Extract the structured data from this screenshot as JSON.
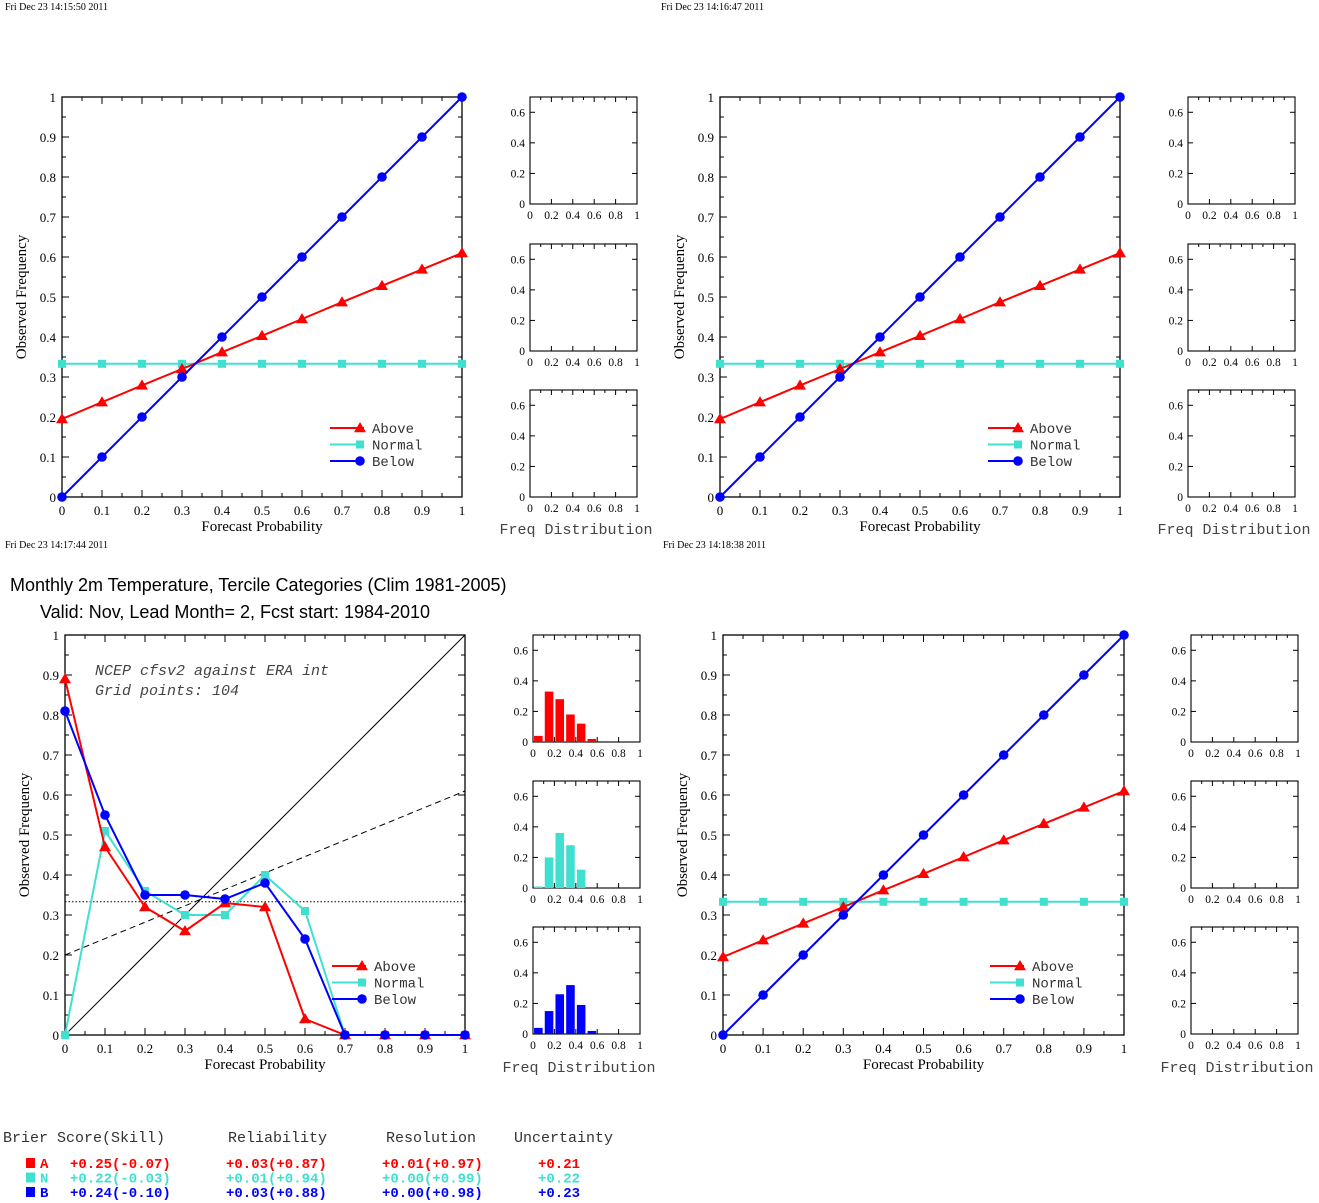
{
  "colors": {
    "above": "#ff0000",
    "normal": "#40e0d0",
    "below": "#0000ff",
    "axis": "#000000"
  },
  "timestamps": [
    "Fri Dec 23 14:15:50 2011",
    "Fri Dec 23 14:16:47 2011",
    "Fri Dec 23 14:17:44 2011",
    "Fri Dec 23 14:18:38 2011"
  ],
  "header": {
    "title": "Monthly 2m Temperature, Tercile Categories (Clim 1981-2005)",
    "subtitle": "Valid: Nov, Lead Month= 2, Fcst start: 1984-2010"
  },
  "annotation": {
    "line1": "NCEP cfsv2 against ERA int",
    "line2": "Grid points:  104"
  },
  "scores": {
    "headers": [
      "Brier Score(Skill)",
      "Reliability",
      "Resolution",
      "Uncertainty"
    ],
    "rows": [
      {
        "label": "A",
        "color": "#ff0000",
        "brier": "+0.25(-0.07)",
        "reliability": "+0.03(+0.87)",
        "resolution": "+0.01(+0.97)",
        "uncertainty": "+0.21"
      },
      {
        "label": "N",
        "color": "#40e0d0",
        "brier": "+0.22(-0.03)",
        "reliability": "+0.01(+0.94)",
        "resolution": "+0.00(+0.99)",
        "uncertainty": "+0.22"
      },
      {
        "label": "B",
        "color": "#0000ff",
        "brier": "+0.24(-0.10)",
        "reliability": "+0.03(+0.88)",
        "resolution": "+0.00(+0.98)",
        "uncertainty": "+0.23"
      }
    ]
  },
  "chart_data": [
    {
      "type": "line",
      "panel": "top-left reliability diagram",
      "xlabel": "Forecast Probability",
      "ylabel": "Observed Frequency",
      "xlim": [
        0,
        1
      ],
      "ylim": [
        0,
        1
      ],
      "x_ticks": [
        "0",
        "0.1",
        "0.2",
        "0.3",
        "0.4",
        "0.5",
        "0.6",
        "0.7",
        "0.8",
        "0.9",
        "1"
      ],
      "y_ticks": [
        "0",
        "0.1",
        "0.2",
        "0.3",
        "0.4",
        "0.5",
        "0.6",
        "0.7",
        "0.8",
        "0.9",
        "1"
      ],
      "legend": "bottom-right",
      "x": [
        0,
        0.1,
        0.2,
        0.3,
        0.4,
        0.5,
        0.6,
        0.7,
        0.8,
        0.9,
        1
      ],
      "series": [
        {
          "name": "Above",
          "color": "#ff0000",
          "marker": "triangle",
          "values": [
            0.195,
            0.237,
            0.279,
            0.32,
            0.362,
            0.403,
            0.445,
            0.487,
            0.528,
            0.569,
            0.61
          ]
        },
        {
          "name": "Normal",
          "color": "#40e0d0",
          "marker": "square",
          "values": [
            0.333,
            0.333,
            0.333,
            0.333,
            0.333,
            0.333,
            0.333,
            0.333,
            0.333,
            0.333,
            0.333
          ]
        },
        {
          "name": "Below",
          "color": "#0000ff",
          "marker": "circle",
          "values": [
            0,
            0.1,
            0.2,
            0.3,
            0.4,
            0.5,
            0.6,
            0.7,
            0.8,
            0.9,
            1
          ]
        }
      ],
      "freq_distribution": {
        "label": "Freq Distribution",
        "x_ticks": [
          "0",
          "0.2",
          "0.4",
          "0.6",
          "0.8",
          "1"
        ],
        "y_ticks": [
          "0",
          "0.2",
          "0.4",
          "0.6"
        ],
        "ylim": [
          0,
          0.7
        ],
        "bins": [
          0.05,
          0.15,
          0.25,
          0.35,
          0.45,
          0.55,
          0.65,
          0.75,
          0.85,
          0.95
        ],
        "above": [],
        "normal": [],
        "below": []
      }
    },
    {
      "type": "line",
      "panel": "top-right reliability diagram",
      "xlabel": "Forecast Probability",
      "ylabel": "Observed Frequency",
      "xlim": [
        0,
        1
      ],
      "ylim": [
        0,
        1
      ],
      "x_ticks": [
        "0",
        "0.1",
        "0.2",
        "0.3",
        "0.4",
        "0.5",
        "0.6",
        "0.7",
        "0.8",
        "0.9",
        "1"
      ],
      "y_ticks": [
        "0",
        "0.1",
        "0.2",
        "0.3",
        "0.4",
        "0.5",
        "0.6",
        "0.7",
        "0.8",
        "0.9",
        "1"
      ],
      "legend": "bottom-right",
      "x": [
        0,
        0.1,
        0.2,
        0.3,
        0.4,
        0.5,
        0.6,
        0.7,
        0.8,
        0.9,
        1
      ],
      "series": [
        {
          "name": "Above",
          "color": "#ff0000",
          "marker": "triangle",
          "values": [
            0.195,
            0.237,
            0.279,
            0.32,
            0.362,
            0.403,
            0.445,
            0.487,
            0.528,
            0.569,
            0.61
          ]
        },
        {
          "name": "Normal",
          "color": "#40e0d0",
          "marker": "square",
          "values": [
            0.333,
            0.333,
            0.333,
            0.333,
            0.333,
            0.333,
            0.333,
            0.333,
            0.333,
            0.333,
            0.333
          ]
        },
        {
          "name": "Below",
          "color": "#0000ff",
          "marker": "circle",
          "values": [
            0,
            0.1,
            0.2,
            0.3,
            0.4,
            0.5,
            0.6,
            0.7,
            0.8,
            0.9,
            1
          ]
        }
      ],
      "freq_distribution": {
        "label": "Freq Distribution",
        "x_ticks": [
          "0",
          "0.2",
          "0.4",
          "0.6",
          "0.8",
          "1"
        ],
        "y_ticks": [
          "0",
          "0.2",
          "0.4",
          "0.6"
        ],
        "ylim": [
          0,
          0.7
        ],
        "bins": [
          0.05,
          0.15,
          0.25,
          0.35,
          0.45,
          0.55,
          0.65,
          0.75,
          0.85,
          0.95
        ],
        "above": [],
        "normal": [],
        "below": []
      }
    },
    {
      "type": "line",
      "panel": "bottom-left reliability diagram",
      "xlabel": "Forecast Probability",
      "ylabel": "Observed Frequency",
      "xlim": [
        0,
        1
      ],
      "ylim": [
        0,
        1
      ],
      "x_ticks": [
        "0",
        "0.1",
        "0.2",
        "0.3",
        "0.4",
        "0.5",
        "0.6",
        "0.7",
        "0.8",
        "0.9",
        "1"
      ],
      "y_ticks": [
        "0",
        "0.1",
        "0.2",
        "0.3",
        "0.4",
        "0.5",
        "0.6",
        "0.7",
        "0.8",
        "0.9",
        "1"
      ],
      "legend": "bottom-right",
      "reference_lines": {
        "diagonal": [
          [
            0,
            0
          ],
          [
            1,
            1
          ]
        ],
        "climatology": 0.333,
        "no_skill": [
          [
            0,
            0.2
          ],
          [
            1,
            0.61
          ]
        ]
      },
      "x": [
        0,
        0.1,
        0.2,
        0.3,
        0.4,
        0.5,
        0.6,
        0.7,
        0.8,
        0.9,
        1
      ],
      "series": [
        {
          "name": "Above",
          "color": "#ff0000",
          "marker": "triangle",
          "values": [
            0.89,
            0.47,
            0.32,
            0.26,
            0.33,
            0.32,
            0.04,
            0,
            0,
            0,
            0
          ]
        },
        {
          "name": "Normal",
          "color": "#40e0d0",
          "marker": "square",
          "values": [
            0,
            0.51,
            0.36,
            0.3,
            0.3,
            0.4,
            0.31,
            0,
            0,
            0,
            0
          ]
        },
        {
          "name": "Below",
          "color": "#0000ff",
          "marker": "circle",
          "values": [
            0.81,
            0.55,
            0.35,
            0.35,
            0.34,
            0.38,
            0.24,
            0,
            0,
            0,
            0
          ]
        }
      ],
      "freq_distribution": {
        "label": "Freq Distribution",
        "x_ticks": [
          "0",
          "0.2",
          "0.4",
          "0.6",
          "0.8",
          "1"
        ],
        "y_ticks": [
          "0",
          "0.2",
          "0.4",
          "0.6"
        ],
        "ylim": [
          0,
          0.7
        ],
        "bins": [
          0.05,
          0.15,
          0.25,
          0.35,
          0.45,
          0.55,
          0.65,
          0.75,
          0.85,
          0.95
        ],
        "above": [
          0.04,
          0.33,
          0.28,
          0.18,
          0.12,
          0.02,
          0.005,
          0,
          0,
          0
        ],
        "normal": [
          0.01,
          0.2,
          0.36,
          0.28,
          0.12,
          0,
          0,
          0,
          0,
          0
        ],
        "below": [
          0.04,
          0.15,
          0.26,
          0.32,
          0.19,
          0.02,
          0,
          0,
          0,
          0
        ]
      }
    },
    {
      "type": "line",
      "panel": "bottom-right reliability diagram",
      "xlabel": "Forecast Probability",
      "ylabel": "Observed Frequency",
      "xlim": [
        0,
        1
      ],
      "ylim": [
        0,
        1
      ],
      "x_ticks": [
        "0",
        "0.1",
        "0.2",
        "0.3",
        "0.4",
        "0.5",
        "0.6",
        "0.7",
        "0.8",
        "0.9",
        "1"
      ],
      "y_ticks": [
        "0",
        "0.1",
        "0.2",
        "0.3",
        "0.4",
        "0.5",
        "0.6",
        "0.7",
        "0.8",
        "0.9",
        "1"
      ],
      "legend": "bottom-right",
      "x": [
        0,
        0.1,
        0.2,
        0.3,
        0.4,
        0.5,
        0.6,
        0.7,
        0.8,
        0.9,
        1
      ],
      "series": [
        {
          "name": "Above",
          "color": "#ff0000",
          "marker": "triangle",
          "values": [
            0.195,
            0.237,
            0.279,
            0.32,
            0.362,
            0.403,
            0.445,
            0.487,
            0.528,
            0.569,
            0.61
          ]
        },
        {
          "name": "Normal",
          "color": "#40e0d0",
          "marker": "square",
          "values": [
            0.333,
            0.333,
            0.333,
            0.333,
            0.333,
            0.333,
            0.333,
            0.333,
            0.333,
            0.333,
            0.333
          ]
        },
        {
          "name": "Below",
          "color": "#0000ff",
          "marker": "circle",
          "values": [
            0,
            0.1,
            0.2,
            0.3,
            0.4,
            0.5,
            0.6,
            0.7,
            0.8,
            0.9,
            1
          ]
        }
      ],
      "freq_distribution": {
        "label": "Freq Distribution",
        "x_ticks": [
          "0",
          "0.2",
          "0.4",
          "0.6",
          "0.8",
          "1"
        ],
        "y_ticks": [
          "0",
          "0.2",
          "0.4",
          "0.6"
        ],
        "ylim": [
          0,
          0.7
        ],
        "bins": [
          0.05,
          0.15,
          0.25,
          0.35,
          0.45,
          0.55,
          0.65,
          0.75,
          0.85,
          0.95
        ],
        "above": [],
        "normal": [],
        "below": []
      }
    }
  ]
}
